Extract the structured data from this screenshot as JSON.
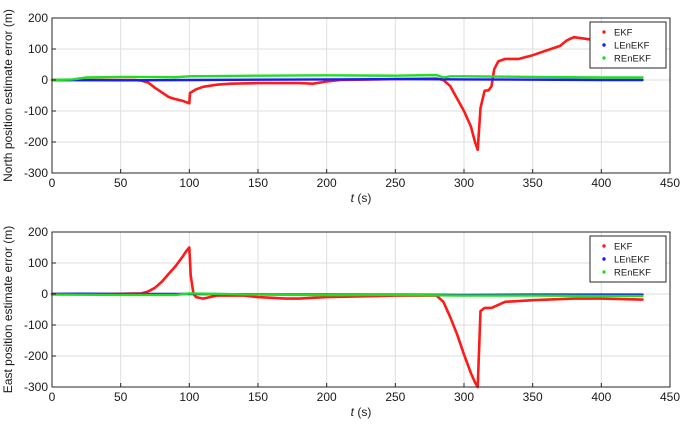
{
  "chart_data": [
    {
      "type": "line",
      "title": "",
      "xlabel_italic": "t",
      "xlabel_unit": " (s)",
      "ylabel": "North position estimate error (m)",
      "xlim": [
        0,
        450
      ],
      "ylim": [
        -300,
        200
      ],
      "xticks": [
        0,
        50,
        100,
        150,
        200,
        250,
        300,
        350,
        400,
        450
      ],
      "yticks": [
        -300,
        -200,
        -100,
        0,
        100,
        200
      ],
      "grid": true,
      "legend_position": "top-right",
      "series": [
        {
          "name": "EKF",
          "color": "#ff1a1a",
          "x": [
            0,
            20,
            40,
            60,
            65,
            70,
            75,
            80,
            85,
            90,
            95,
            100,
            100.5,
            105,
            110,
            120,
            130,
            150,
            180,
            190,
            200,
            210,
            250,
            280,
            285,
            290,
            295,
            300,
            305,
            308,
            310,
            312,
            315,
            318,
            320,
            322,
            325,
            330,
            340,
            350,
            360,
            370,
            375,
            380,
            390,
            400,
            410
          ],
          "y": [
            0,
            0,
            0,
            0,
            -2,
            -8,
            -25,
            -40,
            -55,
            -62,
            -67,
            -75,
            -42,
            -30,
            -22,
            -15,
            -12,
            -10,
            -10,
            -12,
            -5,
            0,
            3,
            5,
            0,
            -20,
            -60,
            -100,
            -150,
            -200,
            -225,
            -90,
            -35,
            -33,
            -20,
            35,
            60,
            68,
            68,
            80,
            95,
            110,
            128,
            138,
            132,
            125,
            128
          ]
        },
        {
          "name": "LEnEKF",
          "color": "#1a1aff",
          "x": [
            0,
            50,
            100,
            150,
            200,
            250,
            300,
            350,
            400,
            430
          ],
          "y": [
            0,
            -1,
            0,
            1,
            2,
            3,
            2,
            1,
            0,
            0
          ]
        },
        {
          "name": "REnEKF",
          "color": "#22dd22",
          "x": [
            0,
            15,
            25,
            50,
            90,
            100,
            150,
            200,
            250,
            280,
            285,
            290,
            300,
            350,
            400,
            430
          ],
          "y": [
            0,
            2,
            8,
            10,
            9,
            12,
            14,
            15,
            14,
            16,
            8,
            12,
            12,
            10,
            8,
            8
          ]
        }
      ]
    },
    {
      "type": "line",
      "title": "",
      "xlabel_italic": "t",
      "xlabel_unit": " (s)",
      "ylabel": "East position estimate error (m)",
      "xlim": [
        0,
        450
      ],
      "ylim": [
        -300,
        200
      ],
      "xticks": [
        0,
        50,
        100,
        150,
        200,
        250,
        300,
        350,
        400,
        450
      ],
      "yticks": [
        -300,
        -200,
        -100,
        0,
        100,
        200
      ],
      "grid": true,
      "legend_position": "top-right",
      "series": [
        {
          "name": "EKF",
          "color": "#ff1a1a",
          "x": [
            0,
            40,
            65,
            70,
            75,
            80,
            85,
            90,
            95,
            98,
            100,
            101,
            103,
            105,
            110,
            120,
            140,
            150,
            170,
            180,
            200,
            250,
            280,
            285,
            290,
            295,
            300,
            305,
            308,
            310,
            312,
            315,
            320,
            330,
            350,
            380,
            400,
            430
          ],
          "y": [
            0,
            0,
            2,
            8,
            20,
            40,
            65,
            90,
            120,
            140,
            150,
            60,
            0,
            -10,
            -15,
            -5,
            -5,
            -10,
            -15,
            -15,
            -10,
            -5,
            -5,
            -25,
            -75,
            -130,
            -195,
            -255,
            -285,
            -300,
            -55,
            -45,
            -45,
            -25,
            -20,
            -15,
            -15,
            -18
          ]
        },
        {
          "name": "LEnEKF",
          "color": "#1a1aff",
          "x": [
            0,
            20,
            50,
            100,
            150,
            200,
            250,
            300,
            350,
            400,
            430
          ],
          "y": [
            0,
            1,
            0,
            0,
            -1,
            -2,
            -2,
            -3,
            -2,
            -2,
            -2
          ]
        },
        {
          "name": "REnEKF",
          "color": "#22dd22",
          "x": [
            0,
            50,
            90,
            100,
            150,
            200,
            250,
            300,
            350,
            400,
            430
          ],
          "y": [
            -2,
            -3,
            -3,
            2,
            -2,
            -4,
            -3,
            -5,
            -5,
            -6,
            -6
          ]
        }
      ]
    }
  ]
}
